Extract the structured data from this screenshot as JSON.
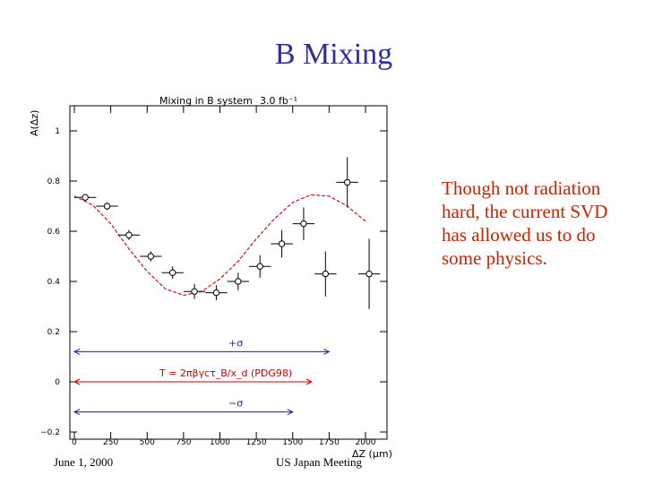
{
  "slide": {
    "title": "B Mixing",
    "note": "Though not radiation hard, the current SVD has allowed us to do some physics.",
    "footer_left": "June 1, 2000",
    "footer_center": "US Japan Meeting"
  },
  "chart_data": {
    "type": "scatter",
    "title": "Mixing in B system",
    "subtitle": "3.0 fb⁻¹",
    "xlabel": "ΔZ (μm)",
    "ylabel": "A(Δz)",
    "xlim": [
      -60,
      2250
    ],
    "ylim": [
      -0.2,
      1.1
    ],
    "x_ticks": [
      0,
      250,
      500,
      750,
      1000,
      1250,
      1500,
      1750,
      2000
    ],
    "y_ticks": [
      -0.2,
      0,
      0.2,
      0.4,
      0.6,
      0.8,
      1
    ],
    "y_tick_labels": [
      "−0.2",
      "0",
      "0.2",
      "0.4",
      "0.6",
      "0.8",
      "1"
    ],
    "series": [
      {
        "x": [
          75,
          225,
          375,
          525,
          675,
          825,
          975,
          1125,
          1275,
          1425,
          1575,
          1725,
          1875,
          2025
        ],
        "y": [
          0.735,
          0.7,
          0.585,
          0.5,
          0.435,
          0.36,
          0.355,
          0.4,
          0.46,
          0.55,
          0.63,
          0.43,
          0.795,
          0.43
        ],
        "xerr": [
          75,
          75,
          75,
          75,
          75,
          75,
          75,
          75,
          75,
          75,
          75,
          75,
          75,
          75
        ],
        "yerr": [
          0.01,
          0.015,
          0.02,
          0.02,
          0.025,
          0.03,
          0.03,
          0.035,
          0.045,
          0.055,
          0.065,
          0.09,
          0.1,
          0.14
        ]
      }
    ],
    "fit_curve": {
      "color": "#cc0000",
      "style": "dashed",
      "x": [
        0,
        125,
        250,
        375,
        500,
        625,
        750,
        875,
        1000,
        1125,
        1250,
        1375,
        1500,
        1625,
        1750,
        1875,
        2000
      ],
      "y": [
        0.74,
        0.705,
        0.63,
        0.53,
        0.44,
        0.37,
        0.345,
        0.36,
        0.41,
        0.48,
        0.57,
        0.65,
        0.715,
        0.745,
        0.74,
        0.7,
        0.64
      ]
    },
    "annotations": [
      {
        "label": "+σ",
        "x_start": 0,
        "x_end": 1750,
        "y": 0.12,
        "color": "#1a1aaa"
      },
      {
        "label": "T = 2πβγcτ_B/x_d (PDG98)",
        "x_start": 0,
        "x_end": 1630,
        "y": 0.0,
        "color": "#cc0000"
      },
      {
        "label": "−σ",
        "x_start": 0,
        "x_end": 1500,
        "y": -0.12,
        "color": "#1a1aaa"
      }
    ],
    "grid": false
  }
}
